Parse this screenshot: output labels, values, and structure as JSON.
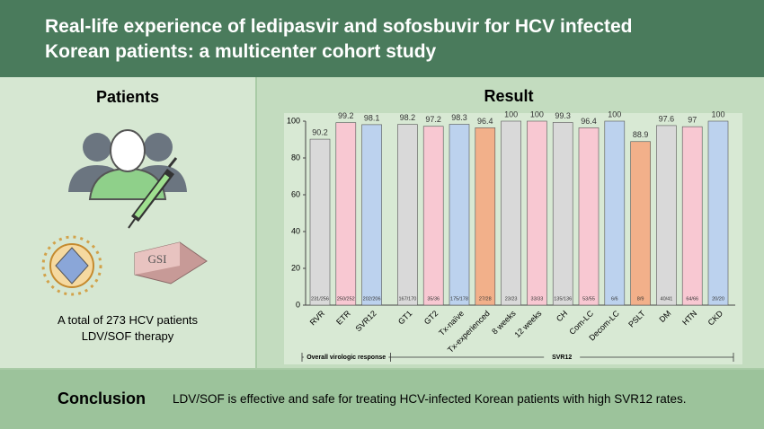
{
  "header": {
    "title_lines": [
      "Real-life experience of ledipasvir and sofosbuvir for HCV infected",
      "Korean patients: a multicenter cohort study"
    ]
  },
  "patients": {
    "heading": "Patients",
    "drug_label": "GSI",
    "caption_lines": [
      "A total of 273 HCV patients",
      "LDV/SOF therapy"
    ]
  },
  "chart_data": {
    "type": "bar",
    "title": "Result",
    "categories": [
      "RVR",
      "ETR",
      "SVR12",
      "GT1",
      "GT2",
      "Tx-naïve",
      "Tx-experienced",
      "8 weeks",
      "12 weeks",
      "CH",
      "Com-LC",
      "Decom-LC",
      "PSLT",
      "DM",
      "HTN",
      "CKD"
    ],
    "values": [
      90.2,
      99.2,
      98.1,
      98.2,
      97.2,
      98.3,
      96.4,
      100,
      100,
      99.3,
      96.4,
      100,
      88.9,
      97.6,
      97,
      100
    ],
    "count_labels": [
      "231/256",
      "250/252",
      "202/206",
      "167/170",
      "35/36",
      "175/178",
      "27/28",
      "23/23",
      "33/33",
      "135/136",
      "53/55",
      "6/6",
      "8/9",
      "40/41",
      "64/66",
      "20/20"
    ],
    "colors": [
      "#d9d9d9",
      "#f8c8d2",
      "#bcd2ee",
      "#d9d9d9",
      "#f8c8d2",
      "#bcd2ee",
      "#f2b08a",
      "#d9d9d9",
      "#f8c8d2",
      "#d9d9d9",
      "#f8c8d2",
      "#bcd2ee",
      "#f2b08a",
      "#d9d9d9",
      "#f8c8d2",
      "#bcd2ee"
    ],
    "groups": [
      "Overall virologic response",
      "SVR12"
    ],
    "ylim": [
      0,
      100
    ],
    "yticks": [
      0,
      20,
      40,
      60,
      80,
      100
    ],
    "grid": false
  },
  "conclusion": {
    "heading": "Conclusion",
    "text": "LDV/SOF is effective and safe for treating HCV-infected Korean patients with high SVR12 rates."
  }
}
